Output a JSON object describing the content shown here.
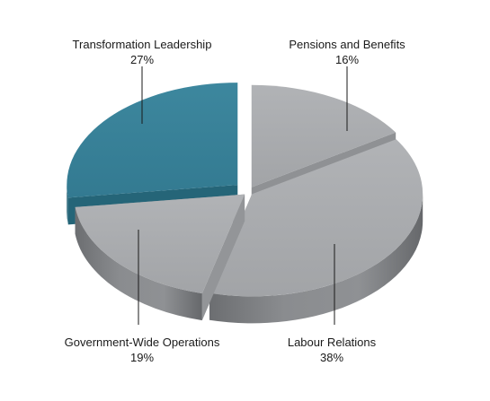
{
  "chart_data": {
    "type": "pie",
    "style": "3d-exploded",
    "slices": [
      {
        "label": "Pensions and Benefits",
        "value": 16,
        "value_label": "16%",
        "color": "#a7a9ac"
      },
      {
        "label": "Labour Relations",
        "value": 38,
        "value_label": "38%",
        "color": "#a7a9ac"
      },
      {
        "label": "Government-Wide Operations",
        "value": 19,
        "value_label": "19%",
        "color": "#a7a9ac"
      },
      {
        "label": "Transformation Leadership",
        "value": 27,
        "value_label": "27%",
        "color": "#3a8299"
      }
    ],
    "unit": "%"
  }
}
